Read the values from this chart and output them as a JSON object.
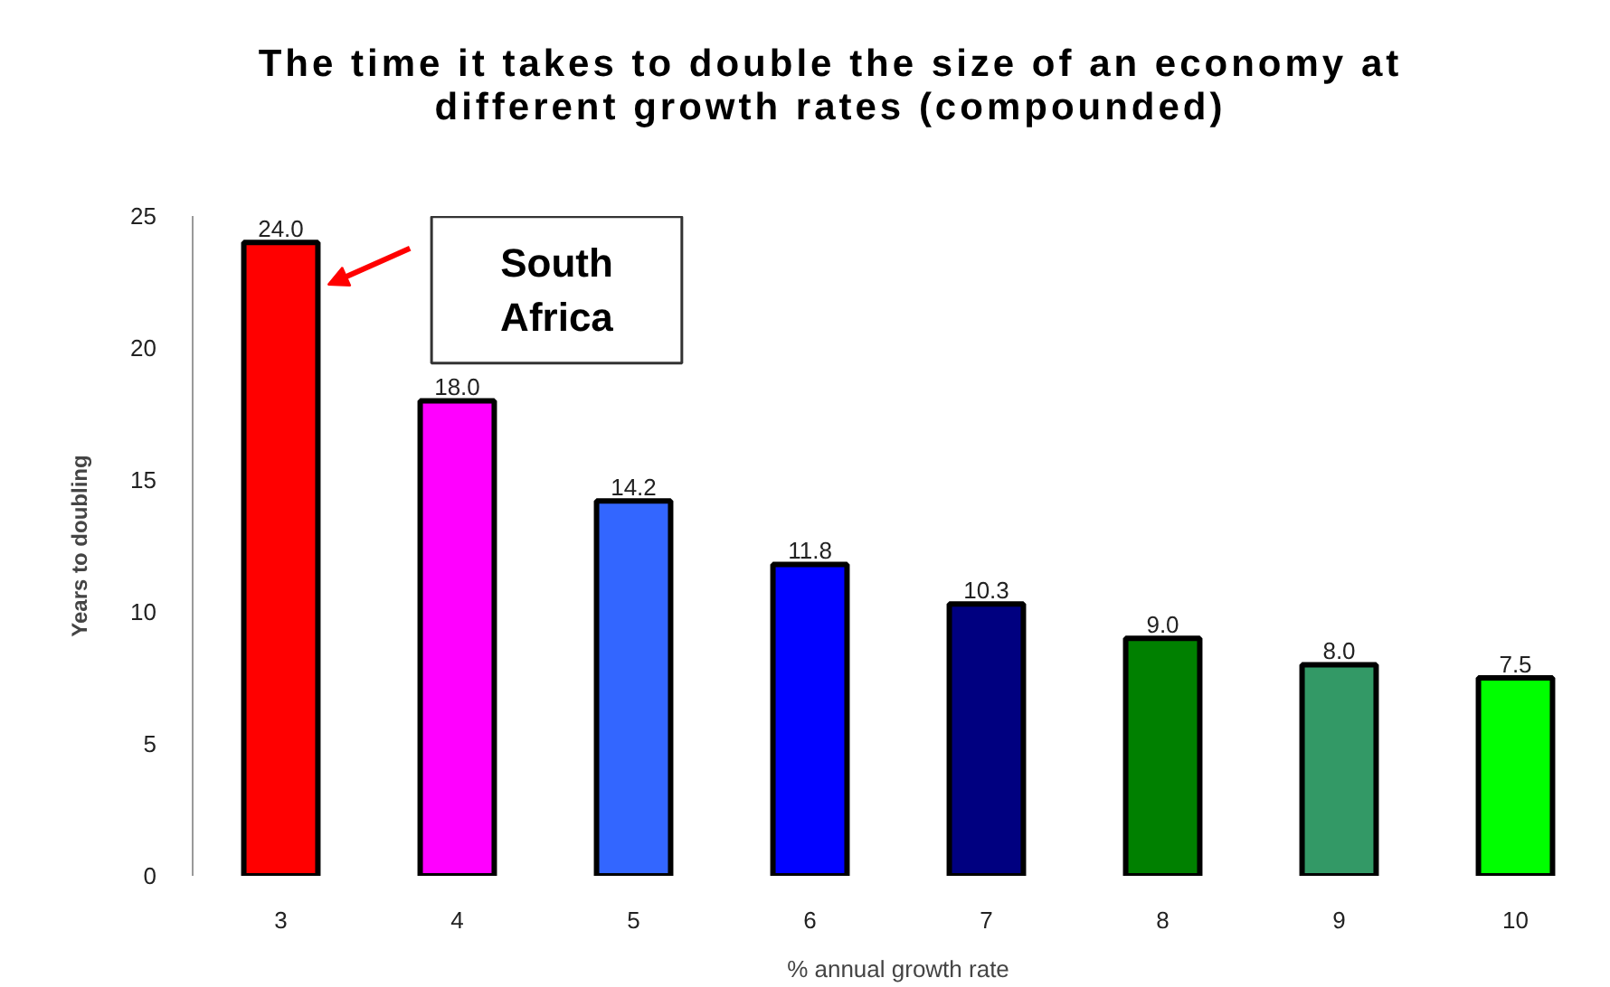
{
  "chart_data": {
    "type": "bar",
    "title": "The time it takes to double the size of an economy at different growth rates (compounded)",
    "xlabel": "% annual growth rate",
    "ylabel": "Years to doubling",
    "categories": [
      "3",
      "4",
      "5",
      "6",
      "7",
      "8",
      "9",
      "10"
    ],
    "values": [
      24.0,
      18.0,
      14.2,
      11.8,
      10.3,
      9.0,
      8.0,
      7.5
    ],
    "colors": [
      "#ff0000",
      "#ff00ff",
      "#3366ff",
      "#0000ff",
      "#000080",
      "#008000",
      "#339966",
      "#00ff00"
    ],
    "value_labels": [
      "24.0",
      "18.0",
      "14.2",
      "11.8",
      "10.3",
      "9.0",
      "8.0",
      "7.5"
    ],
    "ylim": [
      0,
      25
    ],
    "yticks": [
      0,
      5,
      10,
      15,
      20,
      25
    ],
    "grid": false,
    "annotations": [
      "South Africa"
    ]
  }
}
